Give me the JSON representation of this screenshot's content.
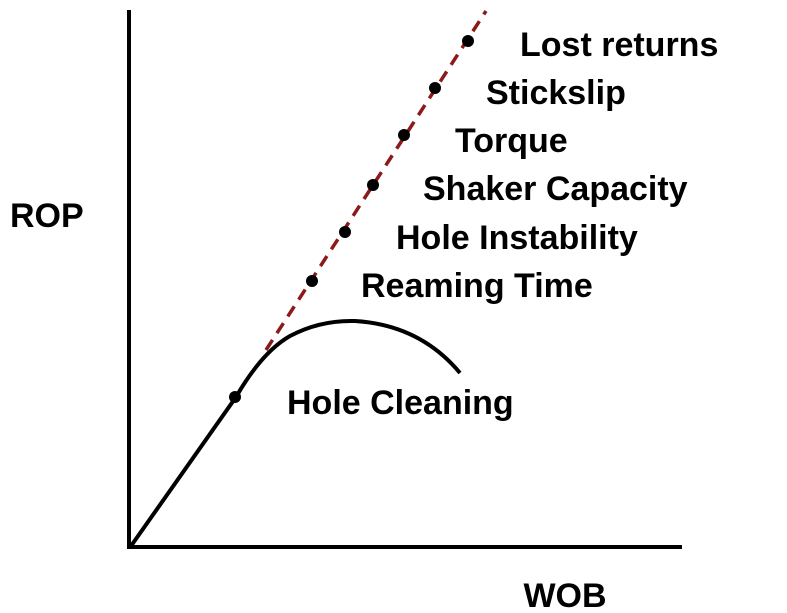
{
  "axes": {
    "x_label": "WOB",
    "y_label": "ROP"
  },
  "limits": [
    "Lost returns",
    "Stickslip",
    "Torque",
    "Shaker Capacity",
    "Hole Instability",
    "Reaming Time"
  ],
  "curve_label": "Hole Cleaning"
}
